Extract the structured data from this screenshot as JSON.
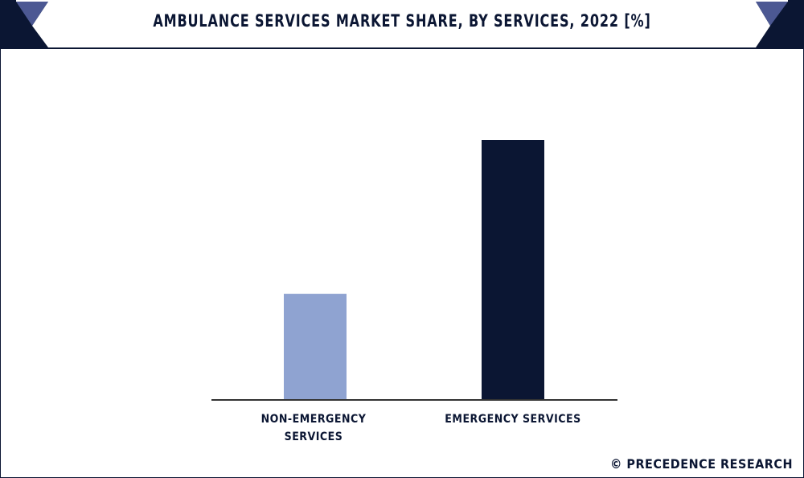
{
  "chart_data": {
    "type": "bar",
    "title": "AMBULANCE SERVICES MARKET SHARE, BY SERVICES, 2022 [%]",
    "categories": [
      "NON-EMERGENCY SERVICES",
      "EMERGENCY SERVICES"
    ],
    "category_lines": [
      [
        "NON-EMERGENCY",
        "SERVICES"
      ],
      [
        "EMERGENCY SERVICES"
      ]
    ],
    "values": [
      29,
      71
    ],
    "colors": [
      "#8fa3d1",
      "#0b1633"
    ],
    "xlabel": "",
    "ylabel": "",
    "ylim": [
      0,
      80
    ],
    "grid": false
  },
  "footer": "© PRECEDENCE RESEARCH"
}
